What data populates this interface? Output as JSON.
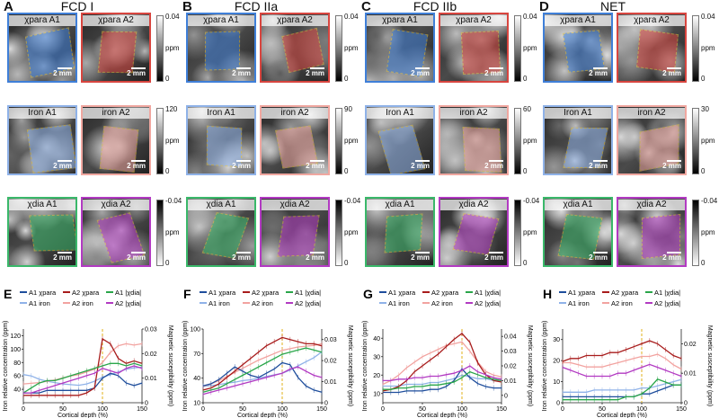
{
  "rows": [
    {
      "labels": [
        "χpara A1",
        "χpara A2"
      ],
      "scale": {
        "top": "0.04",
        "bottom": "0",
        "unit": "ppm",
        "grad": "linear-gradient(#fff,#000)"
      },
      "colorA1": "#3f7fd8",
      "colorA2": "#d8453f"
    },
    {
      "labels": [
        "Iron A1",
        "iron A2"
      ],
      "scale": {
        "top": "120",
        "bottom": "0",
        "unit": "ppm",
        "grad": "linear-gradient(#fff,#000)"
      },
      "colorA1": "#8fb2e8",
      "colorA2": "#f0a7a0"
    },
    {
      "labels": [
        "χdia A1",
        "χdia A2"
      ],
      "scale": {
        "top": "-0.04",
        "bottom": "0",
        "unit": "ppm",
        "grad": "linear-gradient(#000,#fff)"
      },
      "colorA1": "#3ab86a",
      "colorA2": "#b23ac2"
    }
  ],
  "groups": [
    {
      "letter": "A",
      "title": "FCD I",
      "iron_max": "120"
    },
    {
      "letter": "B",
      "title": "FCD IIa",
      "iron_max": "90"
    },
    {
      "letter": "C",
      "title": "FCD IIb",
      "iron_max": "60"
    },
    {
      "letter": "D",
      "title": "NET",
      "iron_max": "30"
    }
  ],
  "scale_text": "2 mm",
  "legend": [
    "A1 χpara",
    "A2 χpara",
    "A1 |χdia|",
    "A1 iron",
    "A2 iron",
    "A2 |χdia|"
  ],
  "series_colors": {
    "A1 χpara": "#1f4e9c",
    "A2 χpara": "#a81c1c",
    "A1 |χdia|": "#2aa64a",
    "A1 iron": "#8fb2e8",
    "A2 iron": "#f2a3a0",
    "A2 |χdia|": "#b23ac2"
  },
  "panel_letters": [
    "E",
    "F",
    "G",
    "H"
  ],
  "chart_data": [
    {
      "type": "line",
      "xlabel": "Cortical depth (%)",
      "ylabel": "Iron relative concentration (ppm)",
      "y2label": "Magnetic susceptibility (ppm)",
      "x": [
        0,
        10,
        20,
        30,
        40,
        50,
        60,
        70,
        80,
        90,
        100,
        110,
        120,
        130,
        140,
        150
      ],
      "ylim": [
        20,
        130
      ],
      "y2lim": [
        0,
        0.03
      ],
      "yticks": [
        "40",
        "60",
        "80",
        "100",
        "120"
      ],
      "y2ticks": [
        "0",
        "0.01",
        "0.02",
        "0.03"
      ],
      "xticks": [
        "0",
        "50",
        "100",
        "150"
      ],
      "vline": 100,
      "series": [
        {
          "name": "A1 iron",
          "axis": "left",
          "values": [
            62,
            60,
            55,
            52,
            50,
            48,
            47,
            46,
            48,
            52,
            58,
            62,
            66,
            70,
            72,
            73
          ]
        },
        {
          "name": "A2 iron",
          "axis": "left",
          "values": [
            48,
            49,
            50,
            52,
            54,
            57,
            60,
            62,
            66,
            70,
            80,
            95,
            105,
            108,
            106,
            108
          ]
        },
        {
          "name": "A1 χpara",
          "axis": "right",
          "values": [
            0.004,
            0.004,
            0.004,
            0.005,
            0.005,
            0.005,
            0.005,
            0.005,
            0.005,
            0.006,
            0.01,
            0.012,
            0.011,
            0.008,
            0.007,
            0.008
          ]
        },
        {
          "name": "A2 χpara",
          "axis": "right",
          "values": [
            0.003,
            0.003,
            0.003,
            0.003,
            0.003,
            0.003,
            0.003,
            0.003,
            0.004,
            0.006,
            0.026,
            0.024,
            0.018,
            0.016,
            0.017,
            0.016
          ]
        },
        {
          "name": "A1 |χdia|",
          "axis": "right",
          "values": [
            0.004,
            0.006,
            0.008,
            0.009,
            0.009,
            0.01,
            0.011,
            0.012,
            0.013,
            0.014,
            0.015,
            0.016,
            0.016,
            0.015,
            0.016,
            0.015
          ]
        },
        {
          "name": "A2 |χdia|",
          "axis": "right",
          "values": [
            0.004,
            0.004,
            0.005,
            0.006,
            0.007,
            0.008,
            0.009,
            0.01,
            0.011,
            0.012,
            0.014,
            0.013,
            0.012,
            0.014,
            0.015,
            0.014
          ]
        }
      ]
    },
    {
      "type": "line",
      "xlabel": "Cortical depth (%)",
      "ylabel": "Iron relative concentration (ppm)",
      "y2label": "Magnetic susceptibility (ppm)",
      "x": [
        0,
        10,
        20,
        30,
        40,
        50,
        60,
        70,
        80,
        90,
        100,
        110,
        120,
        130,
        140,
        150
      ],
      "ylim": [
        10,
        100
      ],
      "y2lim": [
        0,
        0.035
      ],
      "yticks": [
        "10",
        "40",
        "70",
        "100"
      ],
      "y2ticks": [
        "0",
        "0.01",
        "0.02",
        "0.03"
      ],
      "xticks": [
        "0",
        "50",
        "100",
        "150"
      ],
      "vline": 100,
      "series": [
        {
          "name": "A1 iron",
          "axis": "left",
          "values": [
            30,
            31,
            32,
            34,
            35,
            37,
            38,
            40,
            42,
            44,
            46,
            50,
            55,
            60,
            65,
            72
          ]
        },
        {
          "name": "A2 iron",
          "axis": "left",
          "values": [
            30,
            33,
            37,
            42,
            47,
            52,
            57,
            62,
            66,
            70,
            74,
            76,
            78,
            79,
            80,
            82
          ]
        },
        {
          "name": "A1 χpara",
          "axis": "right",
          "values": [
            0.008,
            0.009,
            0.011,
            0.014,
            0.017,
            0.015,
            0.013,
            0.012,
            0.014,
            0.016,
            0.019,
            0.018,
            0.012,
            0.008,
            0.006,
            0.005
          ]
        },
        {
          "name": "A2 χpara",
          "axis": "right",
          "values": [
            0.006,
            0.007,
            0.009,
            0.012,
            0.015,
            0.018,
            0.021,
            0.024,
            0.027,
            0.029,
            0.031,
            0.03,
            0.029,
            0.028,
            0.028,
            0.027
          ]
        },
        {
          "name": "A1 |χdia|",
          "axis": "right",
          "values": [
            0.005,
            0.006,
            0.007,
            0.009,
            0.011,
            0.013,
            0.015,
            0.017,
            0.019,
            0.021,
            0.023,
            0.024,
            0.025,
            0.026,
            0.025,
            0.024
          ]
        },
        {
          "name": "A2 |χdia|",
          "axis": "right",
          "values": [
            0.004,
            0.005,
            0.006,
            0.007,
            0.008,
            0.009,
            0.01,
            0.011,
            0.012,
            0.013,
            0.014,
            0.016,
            0.017,
            0.015,
            0.013,
            0.012
          ]
        }
      ]
    },
    {
      "type": "line",
      "xlabel": "Cortical depth (%)",
      "ylabel": "Iron relative concentration (ppm)",
      "y2label": "Magnetic susceptibility (ppm)",
      "x": [
        0,
        10,
        20,
        30,
        40,
        50,
        60,
        70,
        80,
        90,
        100,
        110,
        120,
        130,
        140,
        150
      ],
      "ylim": [
        5,
        45
      ],
      "y2lim": [
        -0.005,
        0.045
      ],
      "yticks": [
        "10",
        "20",
        "30",
        "40"
      ],
      "y2ticks": [
        "0",
        "0.01",
        "0.02",
        "0.03",
        "0.04"
      ],
      "xticks": [
        "0",
        "50",
        "100",
        "150"
      ],
      "vline": 100,
      "series": [
        {
          "name": "A1 iron",
          "axis": "left",
          "values": [
            14,
            14,
            14,
            15,
            15,
            15,
            16,
            16,
            17,
            18,
            20,
            19,
            18,
            18,
            17,
            17
          ]
        },
        {
          "name": "A2 iron",
          "axis": "left",
          "values": [
            15,
            17,
            20,
            24,
            27,
            30,
            32,
            34,
            36,
            37,
            38,
            33,
            27,
            22,
            20,
            19
          ]
        },
        {
          "name": "A1 χpara",
          "axis": "right",
          "values": [
            0.002,
            0.002,
            0.002,
            0.003,
            0.003,
            0.003,
            0.004,
            0.004,
            0.006,
            0.01,
            0.018,
            0.012,
            0.008,
            0.006,
            0.005,
            0.005
          ]
        },
        {
          "name": "A2 χpara",
          "axis": "right",
          "values": [
            0.003,
            0.004,
            0.006,
            0.01,
            0.016,
            0.02,
            0.024,
            0.028,
            0.033,
            0.038,
            0.042,
            0.036,
            0.022,
            0.014,
            0.01,
            0.009
          ]
        },
        {
          "name": "A1 |χdia|",
          "axis": "right",
          "values": [
            0.004,
            0.004,
            0.005,
            0.005,
            0.006,
            0.006,
            0.007,
            0.007,
            0.008,
            0.009,
            0.012,
            0.016,
            0.014,
            0.012,
            0.011,
            0.01
          ]
        },
        {
          "name": "A2 |χdia|",
          "axis": "right",
          "values": [
            0.01,
            0.01,
            0.011,
            0.011,
            0.012,
            0.012,
            0.013,
            0.013,
            0.014,
            0.015,
            0.017,
            0.02,
            0.016,
            0.014,
            0.012,
            0.011
          ]
        }
      ]
    },
    {
      "type": "line",
      "xlabel": "Cortical depth (%)",
      "ylabel": "Iron relative concentration (ppm)",
      "y2label": "Magnetic susceptibility (ppm)",
      "x": [
        0,
        10,
        20,
        30,
        40,
        50,
        60,
        70,
        80,
        90,
        100,
        110,
        120,
        130,
        140,
        150
      ],
      "ylim": [
        0,
        35
      ],
      "y2lim": [
        0,
        0.025
      ],
      "yticks": [
        "0",
        "10",
        "20",
        "30"
      ],
      "y2ticks": [
        "0",
        "0.01",
        "0.02"
      ],
      "xticks": [
        "0",
        "50",
        "100",
        "150"
      ],
      "vline": 100,
      "series": [
        {
          "name": "A1 iron",
          "axis": "left",
          "values": [
            5,
            5,
            5,
            5,
            6,
            6,
            6,
            6,
            6,
            6,
            7,
            7,
            8,
            9,
            10,
            11
          ]
        },
        {
          "name": "A2 iron",
          "axis": "left",
          "values": [
            19,
            19,
            18,
            17,
            17,
            17,
            18,
            19,
            20,
            21,
            22,
            22,
            23,
            21,
            18,
            16
          ]
        },
        {
          "name": "A1 χpara",
          "axis": "right",
          "values": [
            0.002,
            0.002,
            0.002,
            0.002,
            0.002,
            0.002,
            0.002,
            0.002,
            0.002,
            0.002,
            0.003,
            0.003,
            0.004,
            0.005,
            0.006,
            0.006
          ]
        },
        {
          "name": "A2 χpara",
          "axis": "right",
          "values": [
            0.014,
            0.015,
            0.015,
            0.016,
            0.016,
            0.016,
            0.017,
            0.017,
            0.018,
            0.019,
            0.02,
            0.021,
            0.02,
            0.018,
            0.016,
            0.015
          ]
        },
        {
          "name": "A1 |χdia|",
          "axis": "right",
          "values": [
            0.001,
            0.001,
            0.001,
            0.001,
            0.001,
            0.001,
            0.001,
            0.001,
            0.002,
            0.002,
            0.003,
            0.005,
            0.008,
            0.007,
            0.006,
            0.006
          ]
        },
        {
          "name": "A2 |χdia|",
          "axis": "right",
          "values": [
            0.012,
            0.011,
            0.01,
            0.009,
            0.009,
            0.009,
            0.009,
            0.01,
            0.01,
            0.011,
            0.012,
            0.013,
            0.012,
            0.011,
            0.01,
            0.009
          ]
        }
      ]
    }
  ]
}
